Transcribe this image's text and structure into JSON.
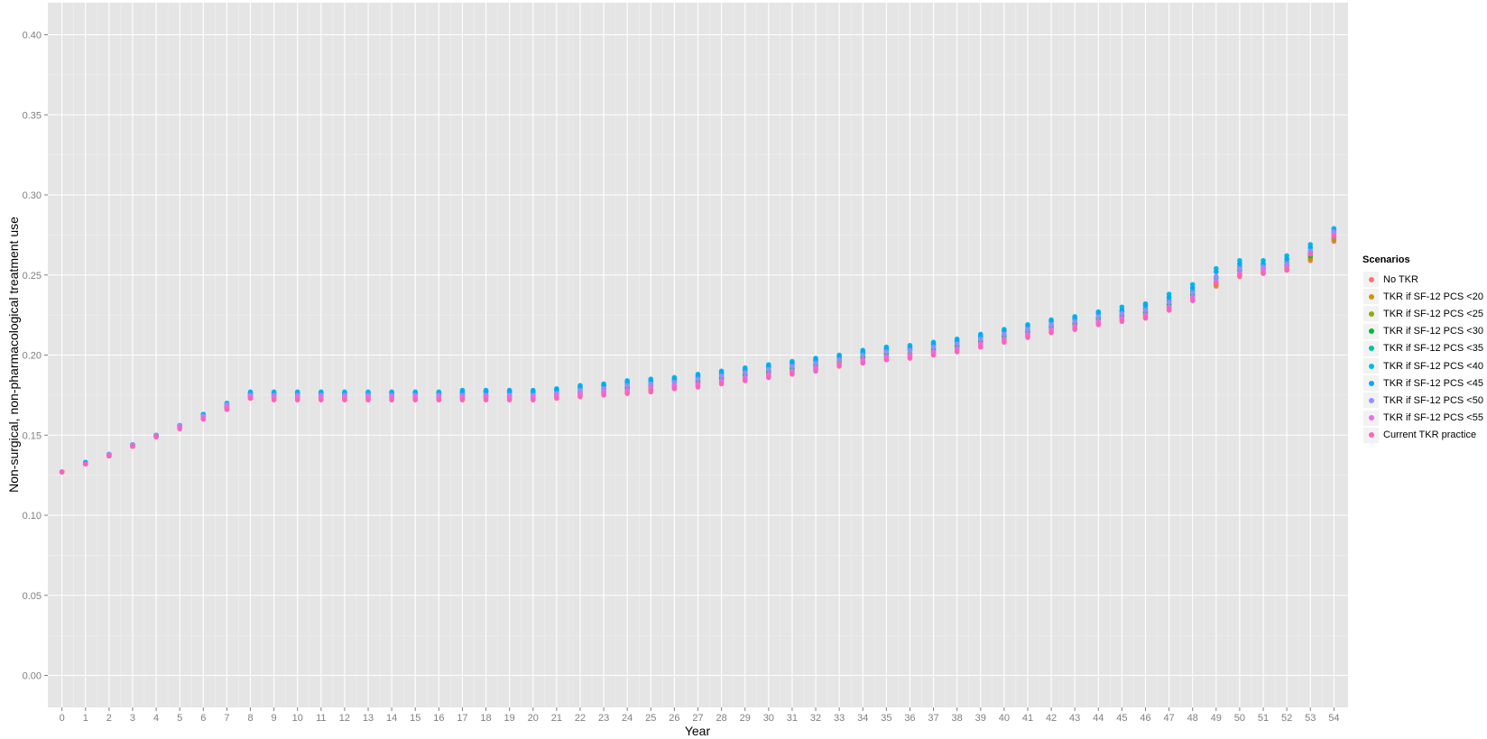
{
  "chart_data": {
    "type": "scatter",
    "xlabel": "Year",
    "ylabel": "Non-surgical, non-pharmacological treatment use",
    "xlim": [
      -0.6,
      54.6
    ],
    "ylim": [
      -0.02,
      0.42
    ],
    "x_ticks": [
      0,
      1,
      2,
      3,
      4,
      5,
      6,
      7,
      8,
      9,
      10,
      11,
      12,
      13,
      14,
      15,
      16,
      17,
      18,
      19,
      20,
      21,
      22,
      23,
      24,
      25,
      26,
      27,
      28,
      29,
      30,
      31,
      32,
      33,
      34,
      35,
      36,
      37,
      38,
      39,
      40,
      41,
      42,
      43,
      44,
      45,
      46,
      47,
      48,
      49,
      50,
      51,
      52,
      53,
      54
    ],
    "y_ticks": [
      "0.00",
      "0.05",
      "0.10",
      "0.15",
      "0.20",
      "0.25",
      "0.30",
      "0.35",
      "0.40"
    ],
    "grid": true,
    "legend_title": "Scenarios",
    "legend_position": "right",
    "x": [
      0,
      1,
      2,
      3,
      4,
      5,
      6,
      7,
      8,
      9,
      10,
      11,
      12,
      13,
      14,
      15,
      16,
      17,
      18,
      19,
      20,
      21,
      22,
      23,
      24,
      25,
      26,
      27,
      28,
      29,
      30,
      31,
      32,
      33,
      34,
      35,
      36,
      37,
      38,
      39,
      40,
      41,
      42,
      43,
      44,
      45,
      46,
      47,
      48,
      49,
      50,
      51,
      52,
      53,
      54
    ],
    "series": [
      {
        "name": "No TKR",
        "color": "#F8766D",
        "values": [
          0.127,
          0.132,
          0.137,
          0.143,
          0.149,
          0.155,
          0.161,
          0.167,
          0.173,
          0.173,
          0.173,
          0.173,
          0.173,
          0.173,
          0.173,
          0.173,
          0.173,
          0.173,
          0.173,
          0.173,
          0.173,
          0.174,
          0.175,
          0.176,
          0.177,
          0.178,
          0.18,
          0.181,
          0.183,
          0.185,
          0.187,
          0.189,
          0.191,
          0.194,
          0.196,
          0.198,
          0.199,
          0.201,
          0.203,
          0.206,
          0.209,
          0.212,
          0.215,
          0.217,
          0.22,
          0.222,
          0.224,
          0.229,
          0.235,
          0.243,
          0.249,
          0.251,
          0.253,
          0.259,
          0.271
        ]
      },
      {
        "name": "TKR if SF-12 PCS <20",
        "color": "#D39200",
        "values": [
          0.127,
          0.132,
          0.137,
          0.143,
          0.149,
          0.155,
          0.161,
          0.167,
          0.174,
          0.173,
          0.173,
          0.173,
          0.173,
          0.173,
          0.173,
          0.173,
          0.173,
          0.173,
          0.174,
          0.174,
          0.174,
          0.175,
          0.176,
          0.177,
          0.178,
          0.179,
          0.181,
          0.182,
          0.184,
          0.186,
          0.188,
          0.19,
          0.192,
          0.195,
          0.197,
          0.199,
          0.2,
          0.202,
          0.204,
          0.207,
          0.21,
          0.213,
          0.216,
          0.218,
          0.221,
          0.223,
          0.225,
          0.23,
          0.236,
          0.244,
          0.25,
          0.252,
          0.254,
          0.26,
          0.272
        ]
      },
      {
        "name": "TKR if SF-12 PCS <25",
        "color": "#93AA00",
        "values": [
          0.127,
          0.132,
          0.137,
          0.143,
          0.149,
          0.155,
          0.161,
          0.168,
          0.174,
          0.174,
          0.174,
          0.174,
          0.174,
          0.174,
          0.174,
          0.174,
          0.174,
          0.174,
          0.174,
          0.174,
          0.174,
          0.175,
          0.176,
          0.178,
          0.179,
          0.18,
          0.181,
          0.183,
          0.185,
          0.187,
          0.189,
          0.191,
          0.193,
          0.196,
          0.198,
          0.2,
          0.201,
          0.203,
          0.205,
          0.208,
          0.211,
          0.214,
          0.217,
          0.219,
          0.222,
          0.224,
          0.226,
          0.231,
          0.237,
          0.245,
          0.251,
          0.253,
          0.255,
          0.261,
          0.273
        ]
      },
      {
        "name": "TKR if SF-12 PCS <30",
        "color": "#00BA38",
        "values": [
          0.127,
          0.132,
          0.138,
          0.144,
          0.15,
          0.156,
          0.162,
          0.168,
          0.175,
          0.175,
          0.175,
          0.175,
          0.175,
          0.175,
          0.175,
          0.175,
          0.175,
          0.175,
          0.175,
          0.175,
          0.175,
          0.176,
          0.177,
          0.179,
          0.18,
          0.181,
          0.183,
          0.184,
          0.186,
          0.188,
          0.19,
          0.192,
          0.194,
          0.197,
          0.199,
          0.201,
          0.203,
          0.204,
          0.206,
          0.209,
          0.212,
          0.215,
          0.218,
          0.22,
          0.223,
          0.225,
          0.227,
          0.232,
          0.238,
          0.246,
          0.253,
          0.254,
          0.256,
          0.262,
          0.274
        ]
      },
      {
        "name": "TKR if SF-12 PCS <35",
        "color": "#00C19F",
        "values": [
          0.127,
          0.132,
          0.138,
          0.144,
          0.15,
          0.156,
          0.162,
          0.169,
          0.176,
          0.176,
          0.176,
          0.176,
          0.176,
          0.176,
          0.176,
          0.176,
          0.176,
          0.176,
          0.177,
          0.177,
          0.177,
          0.178,
          0.179,
          0.181,
          0.182,
          0.183,
          0.184,
          0.186,
          0.188,
          0.19,
          0.192,
          0.194,
          0.196,
          0.198,
          0.201,
          0.203,
          0.204,
          0.206,
          0.208,
          0.211,
          0.213,
          0.216,
          0.219,
          0.222,
          0.224,
          0.227,
          0.229,
          0.234,
          0.24,
          0.248,
          0.255,
          0.256,
          0.258,
          0.264,
          0.276
        ]
      },
      {
        "name": "TKR if SF-12 PCS <40",
        "color": "#00B9E3",
        "values": [
          0.127,
          0.133,
          0.138,
          0.144,
          0.15,
          0.156,
          0.163,
          0.17,
          0.177,
          0.177,
          0.177,
          0.177,
          0.177,
          0.177,
          0.177,
          0.177,
          0.177,
          0.178,
          0.178,
          0.178,
          0.178,
          0.179,
          0.181,
          0.182,
          0.184,
          0.185,
          0.186,
          0.188,
          0.19,
          0.192,
          0.194,
          0.196,
          0.198,
          0.2,
          0.203,
          0.205,
          0.206,
          0.208,
          0.21,
          0.213,
          0.216,
          0.219,
          0.222,
          0.224,
          0.227,
          0.23,
          0.232,
          0.238,
          0.244,
          0.254,
          0.259,
          0.259,
          0.262,
          0.269,
          0.279
        ]
      },
      {
        "name": "TKR if SF-12 PCS <45",
        "color": "#00A9FF",
        "values": [
          0.127,
          0.133,
          0.138,
          0.144,
          0.15,
          0.156,
          0.163,
          0.169,
          0.176,
          0.176,
          0.176,
          0.176,
          0.176,
          0.176,
          0.176,
          0.176,
          0.176,
          0.177,
          0.177,
          0.177,
          0.177,
          0.178,
          0.18,
          0.181,
          0.183,
          0.184,
          0.185,
          0.187,
          0.189,
          0.191,
          0.193,
          0.195,
          0.197,
          0.199,
          0.202,
          0.204,
          0.205,
          0.207,
          0.209,
          0.212,
          0.215,
          0.218,
          0.221,
          0.223,
          0.226,
          0.228,
          0.231,
          0.236,
          0.242,
          0.252,
          0.257,
          0.257,
          0.26,
          0.267,
          0.278
        ]
      },
      {
        "name": "TKR if SF-12 PCS <50",
        "color": "#9590FF",
        "values": [
          0.127,
          0.132,
          0.138,
          0.144,
          0.15,
          0.156,
          0.162,
          0.169,
          0.175,
          0.175,
          0.175,
          0.175,
          0.175,
          0.175,
          0.175,
          0.175,
          0.175,
          0.175,
          0.175,
          0.175,
          0.175,
          0.176,
          0.178,
          0.179,
          0.181,
          0.182,
          0.183,
          0.185,
          0.187,
          0.189,
          0.191,
          0.193,
          0.195,
          0.197,
          0.2,
          0.202,
          0.203,
          0.205,
          0.207,
          0.21,
          0.213,
          0.216,
          0.219,
          0.221,
          0.224,
          0.226,
          0.228,
          0.233,
          0.239,
          0.249,
          0.254,
          0.255,
          0.257,
          0.265,
          0.277
        ]
      },
      {
        "name": "TKR if SF-12 PCS <55",
        "color": "#E76BF3",
        "values": [
          0.127,
          0.132,
          0.137,
          0.143,
          0.149,
          0.155,
          0.161,
          0.168,
          0.174,
          0.174,
          0.174,
          0.174,
          0.174,
          0.174,
          0.174,
          0.174,
          0.174,
          0.174,
          0.174,
          0.174,
          0.174,
          0.175,
          0.176,
          0.177,
          0.178,
          0.18,
          0.181,
          0.182,
          0.184,
          0.186,
          0.188,
          0.19,
          0.192,
          0.194,
          0.197,
          0.199,
          0.2,
          0.202,
          0.204,
          0.207,
          0.21,
          0.213,
          0.216,
          0.218,
          0.221,
          0.223,
          0.225,
          0.23,
          0.236,
          0.246,
          0.251,
          0.253,
          0.255,
          0.263,
          0.275
        ]
      },
      {
        "name": "Current TKR practice",
        "color": "#FF62BC",
        "values": [
          0.127,
          0.132,
          0.137,
          0.143,
          0.149,
          0.154,
          0.16,
          0.166,
          0.173,
          0.172,
          0.172,
          0.172,
          0.172,
          0.172,
          0.172,
          0.172,
          0.172,
          0.172,
          0.172,
          0.172,
          0.172,
          0.173,
          0.174,
          0.175,
          0.176,
          0.177,
          0.179,
          0.18,
          0.182,
          0.184,
          0.186,
          0.188,
          0.19,
          0.193,
          0.195,
          0.197,
          0.198,
          0.2,
          0.202,
          0.205,
          0.208,
          0.211,
          0.214,
          0.216,
          0.219,
          0.221,
          0.223,
          0.228,
          0.234,
          0.245,
          0.25,
          0.251,
          0.253,
          0.263,
          0.274
        ]
      }
    ]
  }
}
